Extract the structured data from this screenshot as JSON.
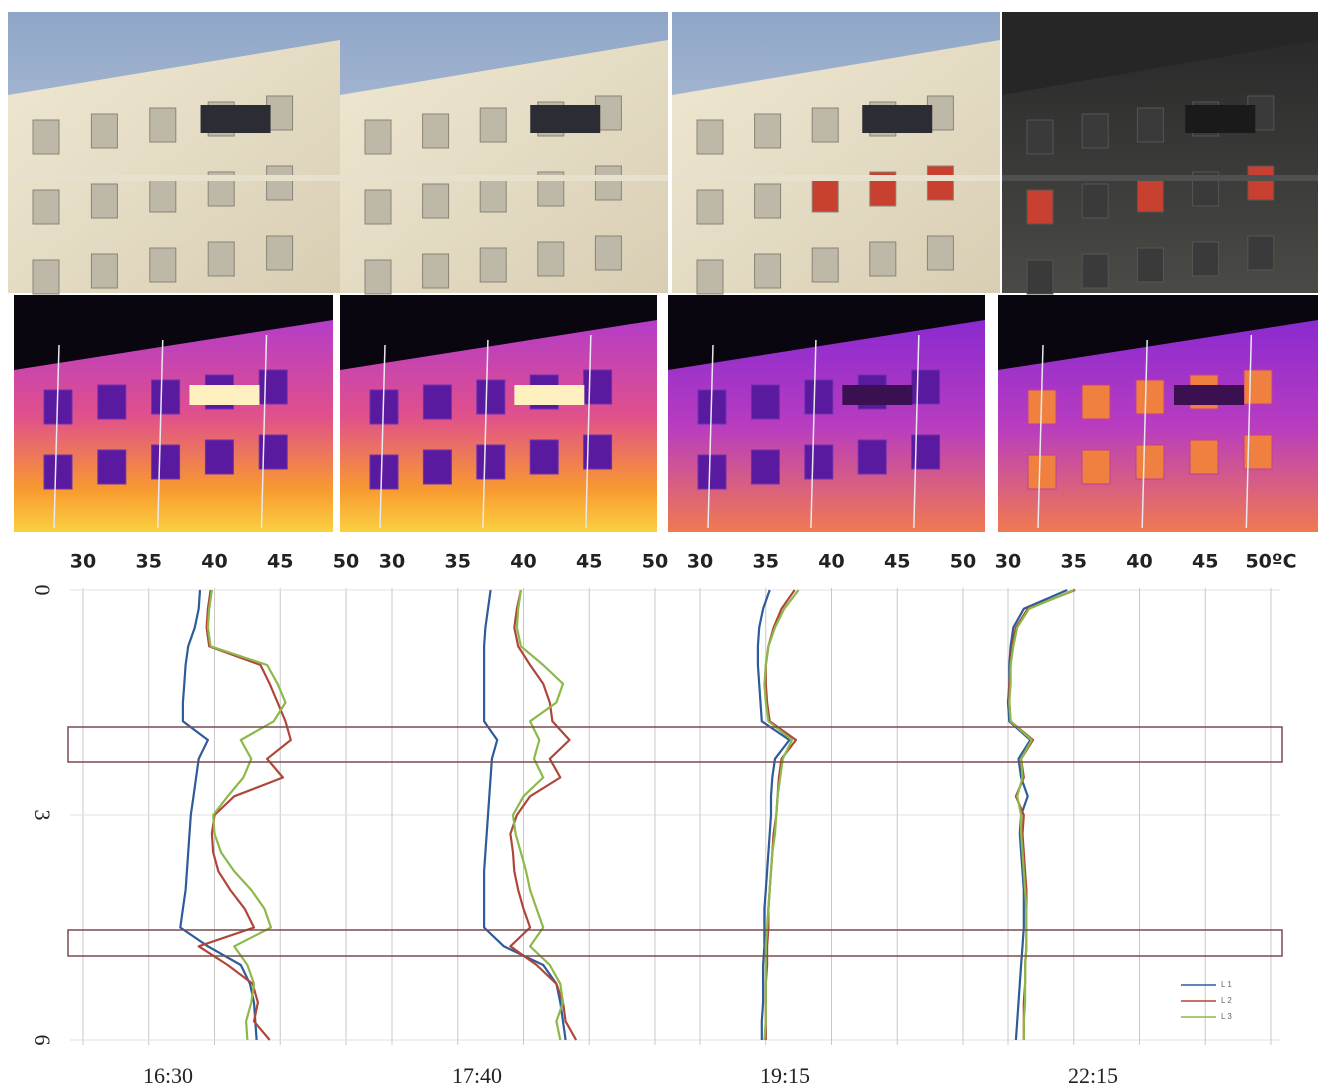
{
  "chart_data": [
    {
      "type": "line",
      "title": "16:30",
      "orientation": "horizontal",
      "y_inverted": true,
      "xlim": [
        30,
        50
      ],
      "xticks": [
        30,
        35,
        40,
        45,
        50
      ],
      "ylim": [
        0,
        6
      ],
      "yticks": [
        0,
        3,
        6
      ],
      "grid": true,
      "y": [
        0,
        0.25,
        0.5,
        0.75,
        1,
        1.25,
        1.5,
        1.75,
        2,
        2.25,
        2.5,
        2.75,
        3,
        3.25,
        3.5,
        3.75,
        4,
        4.25,
        4.5,
        4.75,
        5,
        5.25,
        5.5,
        5.75,
        6
      ],
      "series": [
        {
          "color": "#2e5b9a",
          "values": [
            38.9,
            38.8,
            38.5,
            38.0,
            37.8,
            37.7,
            37.6,
            37.6,
            39.5,
            38.8,
            38.6,
            38.4,
            38.2,
            38.1,
            38.0,
            37.9,
            37.8,
            37.6,
            37.4,
            39.5,
            42.0,
            42.7,
            43.0,
            43.1,
            43.2
          ]
        },
        {
          "color": "#b0463a",
          "values": [
            39.7,
            39.5,
            39.4,
            39.6,
            43.5,
            44.2,
            44.8,
            45.4,
            45.8,
            44.0,
            45.2,
            41.5,
            40.0,
            39.8,
            39.9,
            40.3,
            41.2,
            42.3,
            43.0,
            38.8,
            41.0,
            42.9,
            43.3,
            43.0,
            44.2
          ]
        },
        {
          "color": "#8db84a",
          "values": [
            39.8,
            39.6,
            39.5,
            39.7,
            44.0,
            44.8,
            45.4,
            44.5,
            42.0,
            42.8,
            42.2,
            41.0,
            39.9,
            40.0,
            40.5,
            41.5,
            42.8,
            43.8,
            44.3,
            41.5,
            42.5,
            43.0,
            42.8,
            42.4,
            42.5
          ]
        }
      ]
    },
    {
      "type": "line",
      "title": "17:40",
      "orientation": "horizontal",
      "y_inverted": true,
      "xlim": [
        30,
        50
      ],
      "xticks": [
        30,
        35,
        40,
        45,
        50
      ],
      "ylim": [
        0,
        6
      ],
      "grid": true,
      "y": [
        0,
        0.25,
        0.5,
        0.75,
        1,
        1.25,
        1.5,
        1.75,
        2,
        2.25,
        2.5,
        2.75,
        3,
        3.25,
        3.5,
        3.75,
        4,
        4.25,
        4.5,
        4.75,
        5,
        5.25,
        5.5,
        5.75,
        6
      ],
      "series": [
        {
          "color": "#2e5b9a",
          "values": [
            37.5,
            37.3,
            37.1,
            37.0,
            37.0,
            37.0,
            37.0,
            37.0,
            38.0,
            37.6,
            37.5,
            37.4,
            37.3,
            37.2,
            37.1,
            37.0,
            37.0,
            37.0,
            37.0,
            38.5,
            41.5,
            42.5,
            42.8,
            43.0,
            43.2
          ]
        },
        {
          "color": "#b0463a",
          "values": [
            39.8,
            39.5,
            39.3,
            39.6,
            40.5,
            41.5,
            42.0,
            42.2,
            43.5,
            42.0,
            42.8,
            40.5,
            39.5,
            39.0,
            39.2,
            39.3,
            39.6,
            40.0,
            40.5,
            39.0,
            41.0,
            42.5,
            43.0,
            43.2,
            44.0
          ]
        },
        {
          "color": "#8db84a",
          "values": [
            39.8,
            39.6,
            39.5,
            39.8,
            41.5,
            43.0,
            42.5,
            40.5,
            41.2,
            40.8,
            41.5,
            40.0,
            39.2,
            39.4,
            39.8,
            40.2,
            40.5,
            41.0,
            41.5,
            40.5,
            42.0,
            42.8,
            43.0,
            42.5,
            42.8
          ]
        }
      ]
    },
    {
      "type": "line",
      "title": "19:15",
      "orientation": "horizontal",
      "y_inverted": true,
      "xlim": [
        30,
        50
      ],
      "xticks": [
        30,
        35,
        40,
        45,
        50
      ],
      "ylim": [
        0,
        6
      ],
      "grid": true,
      "y": [
        0,
        0.25,
        0.5,
        0.75,
        1,
        1.25,
        1.5,
        1.75,
        2,
        2.25,
        2.5,
        2.75,
        3,
        3.25,
        3.5,
        3.75,
        4,
        4.25,
        4.5,
        4.75,
        5,
        5.25,
        5.5,
        5.75,
        6
      ],
      "series": [
        {
          "color": "#2e5b9a",
          "values": [
            35.3,
            34.8,
            34.5,
            34.4,
            34.4,
            34.5,
            34.6,
            34.7,
            36.8,
            35.7,
            35.5,
            35.4,
            35.4,
            35.3,
            35.2,
            35.1,
            35.0,
            34.9,
            34.9,
            34.9,
            34.8,
            34.8,
            34.8,
            34.7,
            34.7
          ]
        },
        {
          "color": "#b0463a",
          "values": [
            37.2,
            36.2,
            35.6,
            35.2,
            35.0,
            35.0,
            35.1,
            35.3,
            37.3,
            36.2,
            36.0,
            35.9,
            35.8,
            35.6,
            35.5,
            35.4,
            35.3,
            35.2,
            35.2,
            35.1,
            35.1,
            35.0,
            35.0,
            35.0,
            35.0
          ]
        },
        {
          "color": "#8db84a",
          "values": [
            37.5,
            36.4,
            35.7,
            35.2,
            35.0,
            34.9,
            35.0,
            35.2,
            37.0,
            36.3,
            36.1,
            35.9,
            35.8,
            35.7,
            35.5,
            35.4,
            35.3,
            35.2,
            35.1,
            35.0,
            35.0,
            35.0,
            35.0,
            35.0,
            34.9
          ]
        }
      ]
    },
    {
      "type": "line",
      "title": "22:15",
      "orientation": "horizontal",
      "y_inverted": true,
      "xlim": [
        30,
        50
      ],
      "xticks": [
        30,
        35,
        40,
        45,
        {
          "value": 50,
          "label": "50ºC"
        }
      ],
      "ylim": [
        0,
        6
      ],
      "grid": true,
      "legend": "lower right",
      "y": [
        0,
        0.25,
        0.5,
        0.75,
        1,
        1.25,
        1.5,
        1.75,
        2,
        2.25,
        2.5,
        2.75,
        3,
        3.25,
        3.5,
        3.75,
        4,
        4.25,
        4.5,
        4.75,
        5,
        5.25,
        5.5,
        5.75,
        6
      ],
      "series": [
        {
          "name": "L 1",
          "color": "#2e5b9a",
          "values": [
            34.5,
            31.2,
            30.4,
            30.2,
            30.1,
            30.1,
            30.0,
            30.1,
            31.7,
            30.8,
            31.0,
            31.5,
            31.0,
            30.9,
            31.0,
            31.1,
            31.2,
            31.2,
            31.2,
            31.1,
            31.0,
            30.9,
            30.8,
            30.7,
            30.6
          ]
        },
        {
          "name": "L 2",
          "color": "#b0463a",
          "values": [
            35.1,
            31.5,
            30.6,
            30.3,
            30.2,
            30.1,
            30.1,
            30.2,
            31.9,
            31.0,
            31.2,
            30.6,
            31.2,
            31.1,
            31.2,
            31.3,
            31.4,
            31.4,
            31.4,
            31.4,
            31.3,
            31.3,
            31.2,
            31.2,
            31.2
          ]
        },
        {
          "name": "L 3",
          "color": "#8db84a",
          "values": [
            35.0,
            31.6,
            30.7,
            30.4,
            30.2,
            30.2,
            30.1,
            30.2,
            31.8,
            31.0,
            31.1,
            30.7,
            31.0,
            31.0,
            31.1,
            31.2,
            31.3,
            31.4,
            31.4,
            31.4,
            31.3,
            31.3,
            31.3,
            31.2,
            31.2
          ]
        }
      ]
    }
  ]
}
